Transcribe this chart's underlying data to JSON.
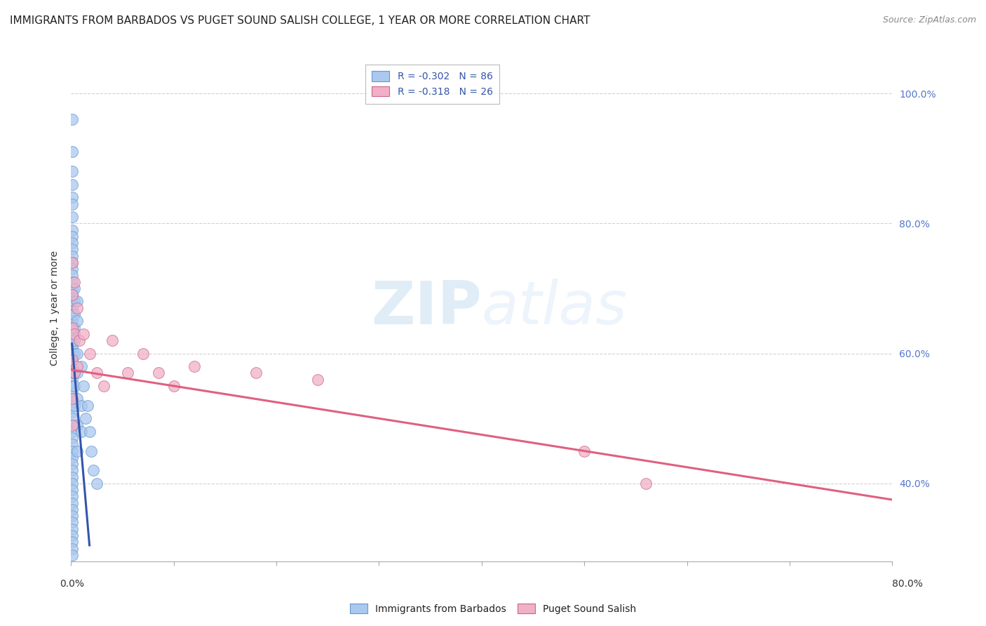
{
  "title": "IMMIGRANTS FROM BARBADOS VS PUGET SOUND SALISH COLLEGE, 1 YEAR OR MORE CORRELATION CHART",
  "source": "Source: ZipAtlas.com",
  "ylabel": "College, 1 year or more",
  "legend1_label": "R = -0.302   N = 86",
  "legend2_label": "R = -0.318   N = 26",
  "series1_color": "#aac8f0",
  "series2_color": "#f0b0c8",
  "line1_color": "#3355aa",
  "line2_color": "#e06080",
  "background_color": "#ffffff",
  "grid_color": "#cccccc",
  "xmin": 0.0,
  "xmax": 0.8,
  "ymin": 0.28,
  "ymax": 1.06,
  "blue_points_x": [
    0.001,
    0.001,
    0.001,
    0.001,
    0.001,
    0.001,
    0.001,
    0.001,
    0.001,
    0.001,
    0.001,
    0.001,
    0.001,
    0.001,
    0.001,
    0.001,
    0.001,
    0.001,
    0.001,
    0.001,
    0.001,
    0.001,
    0.001,
    0.001,
    0.001,
    0.001,
    0.001,
    0.001,
    0.001,
    0.001,
    0.001,
    0.001,
    0.001,
    0.001,
    0.001,
    0.001,
    0.001,
    0.001,
    0.001,
    0.001,
    0.001,
    0.001,
    0.001,
    0.001,
    0.001,
    0.001,
    0.001,
    0.001,
    0.001,
    0.001,
    0.001,
    0.001,
    0.001,
    0.001,
    0.001,
    0.001,
    0.001,
    0.001,
    0.001,
    0.001,
    0.003,
    0.003,
    0.003,
    0.003,
    0.003,
    0.003,
    0.003,
    0.003,
    0.003,
    0.006,
    0.006,
    0.006,
    0.006,
    0.006,
    0.006,
    0.006,
    0.01,
    0.01,
    0.01,
    0.012,
    0.014,
    0.016,
    0.018,
    0.02,
    0.022,
    0.025
  ],
  "blue_points_y": [
    0.96,
    0.91,
    0.88,
    0.86,
    0.84,
    0.83,
    0.81,
    0.79,
    0.78,
    0.77,
    0.76,
    0.75,
    0.74,
    0.73,
    0.72,
    0.71,
    0.7,
    0.69,
    0.68,
    0.67,
    0.66,
    0.65,
    0.64,
    0.63,
    0.62,
    0.61,
    0.6,
    0.59,
    0.58,
    0.57,
    0.56,
    0.55,
    0.54,
    0.53,
    0.52,
    0.51,
    0.5,
    0.49,
    0.48,
    0.47,
    0.46,
    0.45,
    0.44,
    0.43,
    0.42,
    0.41,
    0.4,
    0.39,
    0.38,
    0.37,
    0.36,
    0.35,
    0.34,
    0.33,
    0.32,
    0.31,
    0.3,
    0.29,
    0.61,
    0.59,
    0.7,
    0.68,
    0.66,
    0.64,
    0.62,
    0.6,
    0.57,
    0.55,
    0.52,
    0.68,
    0.65,
    0.6,
    0.57,
    0.53,
    0.49,
    0.45,
    0.58,
    0.52,
    0.48,
    0.55,
    0.5,
    0.52,
    0.48,
    0.45,
    0.42,
    0.4
  ],
  "pink_points_x": [
    0.001,
    0.001,
    0.001,
    0.001,
    0.001,
    0.001,
    0.003,
    0.003,
    0.003,
    0.006,
    0.006,
    0.008,
    0.012,
    0.018,
    0.025,
    0.032,
    0.04,
    0.055,
    0.07,
    0.085,
    0.1,
    0.12,
    0.18,
    0.24,
    0.5,
    0.56
  ],
  "pink_points_y": [
    0.74,
    0.69,
    0.64,
    0.59,
    0.53,
    0.49,
    0.71,
    0.63,
    0.57,
    0.67,
    0.58,
    0.62,
    0.63,
    0.6,
    0.57,
    0.55,
    0.62,
    0.57,
    0.6,
    0.57,
    0.55,
    0.58,
    0.57,
    0.56,
    0.45,
    0.4
  ],
  "blue_line_x": [
    0.001,
    0.018
  ],
  "blue_line_y": [
    0.615,
    0.305
  ],
  "pink_line_x": [
    0.0,
    0.8
  ],
  "pink_line_y": [
    0.575,
    0.375
  ],
  "watermark_zip": "ZIP",
  "watermark_atlas": "atlas",
  "watermark_color": "#c8dff0",
  "title_fontsize": 11,
  "axis_label_fontsize": 10,
  "tick_fontsize": 10,
  "legend_fontsize": 10,
  "source_fontsize": 9
}
